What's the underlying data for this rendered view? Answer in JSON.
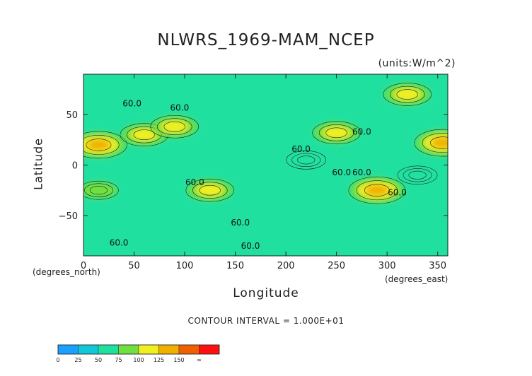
{
  "chart_data": {
    "type": "heatmap",
    "title": "NLWRS_1969-MAM_NCEP",
    "units_label": "(units:W/m^2)",
    "xlabel": "Longitude",
    "ylabel": "Latitude",
    "x_unit_label": "(degrees_east)",
    "y_unit_label": "(degrees_north)",
    "xlim": [
      0,
      360
    ],
    "ylim": [
      -90,
      90
    ],
    "x_ticks": [
      0,
      50,
      100,
      150,
      200,
      250,
      300,
      350
    ],
    "y_ticks": [
      -50,
      0,
      50
    ],
    "contour_interval_text": "CONTOUR INTERVAL = 1.000E+01",
    "contour_labels": [
      "60.0",
      "60.0",
      "60.0",
      "60.0",
      "60.0",
      "60.0",
      "60.0",
      "60.0",
      "60.0",
      "60.0",
      "60.0"
    ],
    "background_value_range": [
      50,
      75
    ],
    "features": [
      {
        "lon": 15,
        "lat": 20,
        "value": 140
      },
      {
        "lon": 60,
        "lat": 30,
        "value": 120
      },
      {
        "lon": 90,
        "lat": 38,
        "value": 110
      },
      {
        "lon": 125,
        "lat": -25,
        "value": 110
      },
      {
        "lon": 250,
        "lat": 32,
        "value": 110
      },
      {
        "lon": 355,
        "lat": 22,
        "value": 125
      },
      {
        "lon": 290,
        "lat": -25,
        "value": 130
      },
      {
        "lon": 15,
        "lat": -25,
        "value": 90
      },
      {
        "lon": 320,
        "lat": 70,
        "value": 100
      },
      {
        "lon": 220,
        "lat": 5,
        "value": 40
      },
      {
        "lon": 330,
        "lat": -10,
        "value": 45
      }
    ],
    "colorbar": {
      "ticks": [
        "0",
        "25",
        "50",
        "75",
        "100",
        "125",
        "150",
        "∞"
      ],
      "colors": [
        "#1aa0ff",
        "#10c8d8",
        "#20e0a0",
        "#70e040",
        "#f0f020",
        "#f0b000",
        "#f06000",
        "#ff1010"
      ]
    }
  }
}
